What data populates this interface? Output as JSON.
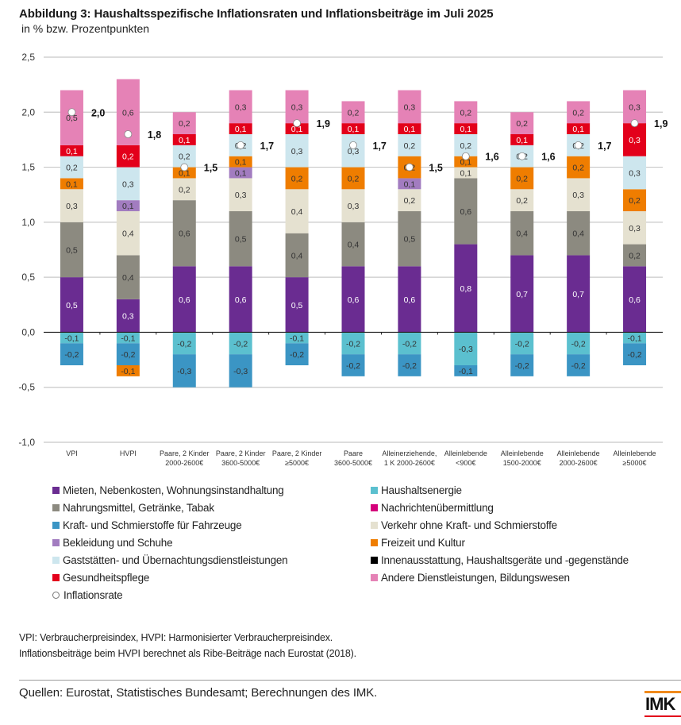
{
  "header": {
    "title": "Abbildung 3: Haushaltsspezifische Inflationsraten und Inflationsbeiträge im Juli 2025",
    "subtitle": "in % bzw. Prozentpunkten"
  },
  "chart_data": {
    "type": "bar",
    "stacked": true,
    "title": "Abbildung 3: Haushaltsspezifische Inflationsraten und Inflationsbeiträge im Juli 2025",
    "subtitle": "in % bzw. Prozentpunkten",
    "xlabel": "",
    "ylabel": "",
    "ylim": [
      -1.0,
      2.5
    ],
    "yticks": [
      -1.0,
      -0.5,
      0.0,
      0.5,
      1.0,
      1.5,
      2.0,
      2.5
    ],
    "ytick_labels": [
      "-1,0",
      "-0,5",
      "0,0",
      "0,5",
      "1,0",
      "1,5",
      "2,0",
      "2,5"
    ],
    "grid": true,
    "legend_position": "bottom",
    "categories": [
      [
        "VPI"
      ],
      [
        "HVPI"
      ],
      [
        "Paare, 2 Kinder",
        "2000-2600€"
      ],
      [
        "Paare, 2 Kinder",
        "3600-5000€"
      ],
      [
        "Paare, 2 Kinder",
        "≥5000€"
      ],
      [
        "Paare",
        "3600-5000€"
      ],
      [
        "Alleinerziehende,",
        "1 K 2000-2600€"
      ],
      [
        "Alleinlebende",
        "<900€"
      ],
      [
        "Alleinlebende",
        "1500-2000€"
      ],
      [
        "Alleinlebende",
        "2000-2600€"
      ],
      [
        "Alleinlebende",
        "≥5000€"
      ]
    ],
    "series": [
      {
        "key": "mieten",
        "name": "Mieten, Nebenkosten, Wohnungsinstandhaltung",
        "color": "#6a2c91",
        "label_color": "#ffffff",
        "values": [
          0.5,
          0.3,
          0.6,
          0.6,
          0.5,
          0.6,
          0.6,
          0.8,
          0.7,
          0.7,
          0.6
        ]
      },
      {
        "key": "nahrung",
        "name": "Nahrungsmittel, Getränke, Tabak",
        "color": "#8c8a80",
        "label_color": "#333333",
        "values": [
          0.5,
          0.4,
          0.6,
          0.5,
          0.4,
          0.4,
          0.5,
          0.6,
          0.4,
          0.4,
          0.2
        ]
      },
      {
        "key": "verkehr",
        "name": "Verkehr ohne Kraft- und Schmierstoffe",
        "color": "#e5e1d0",
        "label_color": "#333333",
        "values": [
          0.3,
          0.4,
          0.2,
          0.3,
          0.4,
          0.3,
          0.2,
          0.1,
          0.2,
          0.3,
          0.3
        ]
      },
      {
        "key": "bekleidung",
        "name": "Bekleidung und Schuhe",
        "color": "#a27cc0",
        "label_color": "#333333",
        "values": [
          0,
          0.1,
          0,
          0.1,
          0,
          0,
          0.1,
          0,
          0,
          0,
          0
        ]
      },
      {
        "key": "freizeit",
        "name": "Freizeit und Kultur",
        "color": "#ef7d00",
        "label_color": "#333333",
        "values": [
          0.1,
          0,
          0.1,
          0.1,
          0.2,
          0.2,
          0.2,
          0.1,
          0.2,
          0.2,
          0.2
        ]
      },
      {
        "key": "gaststaetten",
        "name": "Gaststätten- und Übernachtungsdienstleistungen",
        "color": "#cde6ee",
        "label_color": "#333333",
        "values": [
          0.2,
          0.3,
          0.2,
          0.2,
          0.3,
          0.3,
          0.2,
          0.2,
          0.2,
          0.2,
          0.3
        ]
      },
      {
        "key": "gesundheit",
        "name": "Gesundheitspflege",
        "color": "#e3001b",
        "label_color": "#ffffff",
        "values": [
          0.1,
          0.2,
          0.1,
          0.1,
          0.1,
          0.1,
          0.1,
          0.1,
          0.1,
          0.1,
          0.3
        ]
      },
      {
        "key": "andere",
        "name": "Andere Dienstleistungen, Bildungswesen",
        "color": "#e582b6",
        "label_color": "#333333",
        "values": [
          0.5,
          0.6,
          0.2,
          0.3,
          0.3,
          0.2,
          0.3,
          0.2,
          0.2,
          0.2,
          0.3
        ]
      },
      {
        "key": "energie",
        "name": "Haushaltsenergie",
        "color": "#5bc0cf",
        "label_color": "#333333",
        "values": [
          -0.1,
          -0.1,
          -0.2,
          -0.2,
          -0.1,
          -0.2,
          -0.2,
          -0.3,
          -0.2,
          -0.2,
          -0.1
        ]
      },
      {
        "key": "kraftstoffe",
        "name": "Kraft- und Schmierstoffe für Fahrzeuge",
        "color": "#3b95c4",
        "label_color": "#333333",
        "values": [
          -0.2,
          -0.2,
          -0.3,
          -0.3,
          -0.2,
          -0.2,
          -0.2,
          -0.1,
          -0.2,
          -0.2,
          -0.2
        ]
      },
      {
        "key": "freizeit_neg",
        "name": "Freizeit und Kultur",
        "color": "#ef7d00",
        "label_color": "#333333",
        "values": [
          0,
          -0.1,
          0,
          0,
          0,
          0,
          0,
          0,
          0,
          0,
          0
        ]
      },
      {
        "key": "nachrichten",
        "name": "Nachrichtenübermittlung",
        "color": "#d4007a",
        "label_color": "#ffffff",
        "values": [
          0,
          0,
          0,
          0,
          0,
          0,
          0,
          0,
          0,
          0,
          0
        ]
      },
      {
        "key": "innen",
        "name": "Innenausstattung, Haushaltsgeräte und -gegenstände",
        "color": "#000000",
        "label_color": "#ffffff",
        "values": [
          0,
          0,
          0,
          0,
          0,
          0,
          0,
          0,
          0,
          0,
          0
        ]
      }
    ],
    "inflation_rate": {
      "name": "Inflationsrate",
      "values": [
        2.0,
        1.8,
        1.5,
        1.7,
        1.9,
        1.7,
        1.5,
        1.6,
        1.6,
        1.7,
        1.9
      ],
      "labels": [
        "2,0",
        "1,8",
        "1,5",
        "1,7",
        "1,9",
        "1,7",
        "1,5",
        "1,6",
        "1,6",
        "1,7",
        "1,9"
      ]
    }
  },
  "legend": {
    "left": [
      {
        "label": "Mieten, Nebenkosten, Wohnungsinstandhaltung",
        "color": "#6a2c91"
      },
      {
        "label": "Nahrungsmittel, Getränke, Tabak",
        "color": "#8c8a80"
      },
      {
        "label": "Kraft- und Schmierstoffe für Fahrzeuge",
        "color": "#3b95c4"
      },
      {
        "label": "Bekleidung und Schuhe",
        "color": "#a27cc0"
      },
      {
        "label": "Gaststätten- und Übernachtungsdienstleistungen",
        "color": "#cde6ee"
      },
      {
        "label": "Gesundheitspflege",
        "color": "#e3001b"
      },
      {
        "label": "Inflationsrate",
        "color": "circle"
      }
    ],
    "right": [
      {
        "label": "Haushaltsenergie",
        "color": "#5bc0cf"
      },
      {
        "label": "Nachrichtenübermittlung",
        "color": "#d4007a"
      },
      {
        "label": "Verkehr ohne Kraft- und Schmierstoffe",
        "color": "#e5e1d0"
      },
      {
        "label": "Freizeit und Kultur",
        "color": "#ef7d00"
      },
      {
        "label": "Innenausstattung, Haushaltsgeräte und -gegenstände",
        "color": "#000000"
      },
      {
        "label": "Andere Dienstleistungen, Bildungswesen",
        "color": "#e582b6"
      }
    ]
  },
  "notes": {
    "line1": "VPI: Verbraucherpreisindex, HVPI: Harmonisierter Verbraucherpreisindex.",
    "line2": "Inflationsbeiträge beim HVPI berechnet als Ribe-Beiträge nach Eurostat (2018)."
  },
  "footer": {
    "source": "Quellen: Eurostat, Statistisches Bundesamt; Berechnungen des IMK.",
    "logo_text": "IMK"
  }
}
